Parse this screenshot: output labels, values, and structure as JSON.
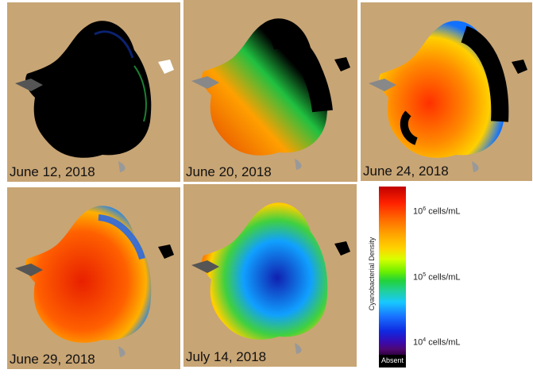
{
  "panels": [
    {
      "date": "June 12, 2018"
    },
    {
      "date": "June 20, 2018"
    },
    {
      "date": "June 24, 2018"
    },
    {
      "date": "June 29, 2018"
    },
    {
      "date": "July 14, 2018"
    }
  ],
  "legend": {
    "title": "Cyanobacterial Density",
    "ticks": [
      {
        "base": "10",
        "exp": "6",
        "unit": " cells/mL"
      },
      {
        "base": "10",
        "exp": "5",
        "unit": " cells/mL"
      },
      {
        "base": "10",
        "exp": "4",
        "unit": " cells/mL"
      }
    ],
    "absent_label": "Absent"
  },
  "colors": {
    "land": "#c8a575",
    "absent": "#000000",
    "high": "#c00000",
    "mid": "#22d23a",
    "low": "#1028e0",
    "cloud_mask": "#a9a9a9"
  }
}
